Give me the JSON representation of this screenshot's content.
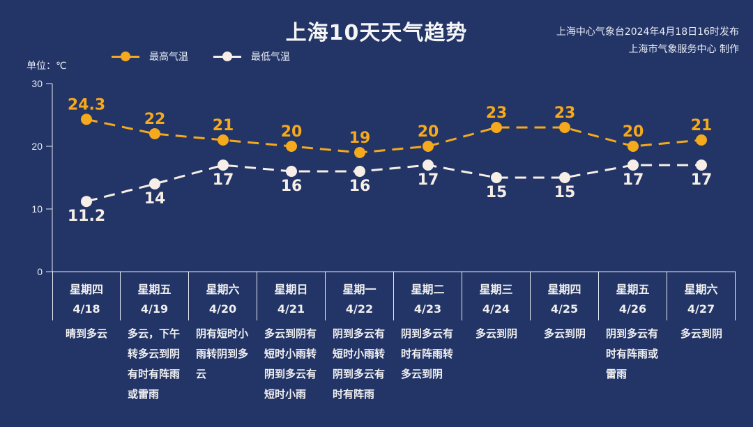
{
  "header": {
    "title": "上海10天天气趋势",
    "issuer_line": "上海中心气象台2024年4月18日16时发布",
    "producer_line": "上海市气象服务中心 制作"
  },
  "legend": {
    "high_label": "最高气温",
    "low_label": "最低气温"
  },
  "axis": {
    "unit_label": "单位：℃"
  },
  "colors": {
    "background": "#233566",
    "high": "#f5a91c",
    "low": "#f7efe7",
    "axis": "#e8ecf5"
  },
  "days": [
    {
      "weekday": "星期四",
      "date": "4/18",
      "weather": "晴到多云"
    },
    {
      "weekday": "星期五",
      "date": "4/19",
      "weather": "多云，下午转多云到阴有时有阵雨或雷雨"
    },
    {
      "weekday": "星期六",
      "date": "4/20",
      "weather": "阴有短时小雨转阴到多云"
    },
    {
      "weekday": "星期日",
      "date": "4/21",
      "weather": "多云到阴有短时小雨转阴到多云有短时小雨"
    },
    {
      "weekday": "星期一",
      "date": "4/22",
      "weather": "阴到多云有短时小雨转阴到多云有时有阵雨"
    },
    {
      "weekday": "星期二",
      "date": "4/23",
      "weather": "阴到多云有时有阵雨转多云到阴"
    },
    {
      "weekday": "星期三",
      "date": "4/24",
      "weather": "多云到阴"
    },
    {
      "weekday": "星期四",
      "date": "4/25",
      "weather": "多云到阴"
    },
    {
      "weekday": "星期五",
      "date": "4/26",
      "weather": "阴到多云有时有阵雨或雷雨"
    },
    {
      "weekday": "星期六",
      "date": "4/27",
      "weather": "多云到阴"
    }
  ],
  "chart_data": {
    "type": "line",
    "title": "上海10天天气趋势",
    "subtitle": "上海中心气象台2024年4月18日16时发布 / 上海市气象服务中心 制作",
    "xlabel": "",
    "ylabel": "单位：℃",
    "categories": [
      "4/18",
      "4/19",
      "4/20",
      "4/21",
      "4/22",
      "4/23",
      "4/24",
      "4/25",
      "4/26",
      "4/27"
    ],
    "series": [
      {
        "name": "最高气温",
        "values": [
          24.3,
          22,
          21,
          20,
          19,
          20,
          23,
          23,
          20,
          21
        ],
        "color": "#f5a91c",
        "line_style": "dashed",
        "labels": [
          "24.3",
          "22",
          "21",
          "20",
          "19",
          "20",
          "23",
          "23",
          "20",
          "21"
        ]
      },
      {
        "name": "最低气温",
        "values": [
          11.2,
          14,
          17,
          16,
          16,
          17,
          15,
          15,
          17,
          17
        ],
        "color": "#f7efe7",
        "line_style": "dashed",
        "labels": [
          "11.2",
          "14",
          "17",
          "16",
          "16",
          "17",
          "15",
          "15",
          "17",
          "17"
        ]
      }
    ],
    "ylim": [
      0,
      30
    ],
    "yticks": [
      "0",
      "10",
      "20",
      "30"
    ],
    "grid": false,
    "legend_position": "top"
  }
}
